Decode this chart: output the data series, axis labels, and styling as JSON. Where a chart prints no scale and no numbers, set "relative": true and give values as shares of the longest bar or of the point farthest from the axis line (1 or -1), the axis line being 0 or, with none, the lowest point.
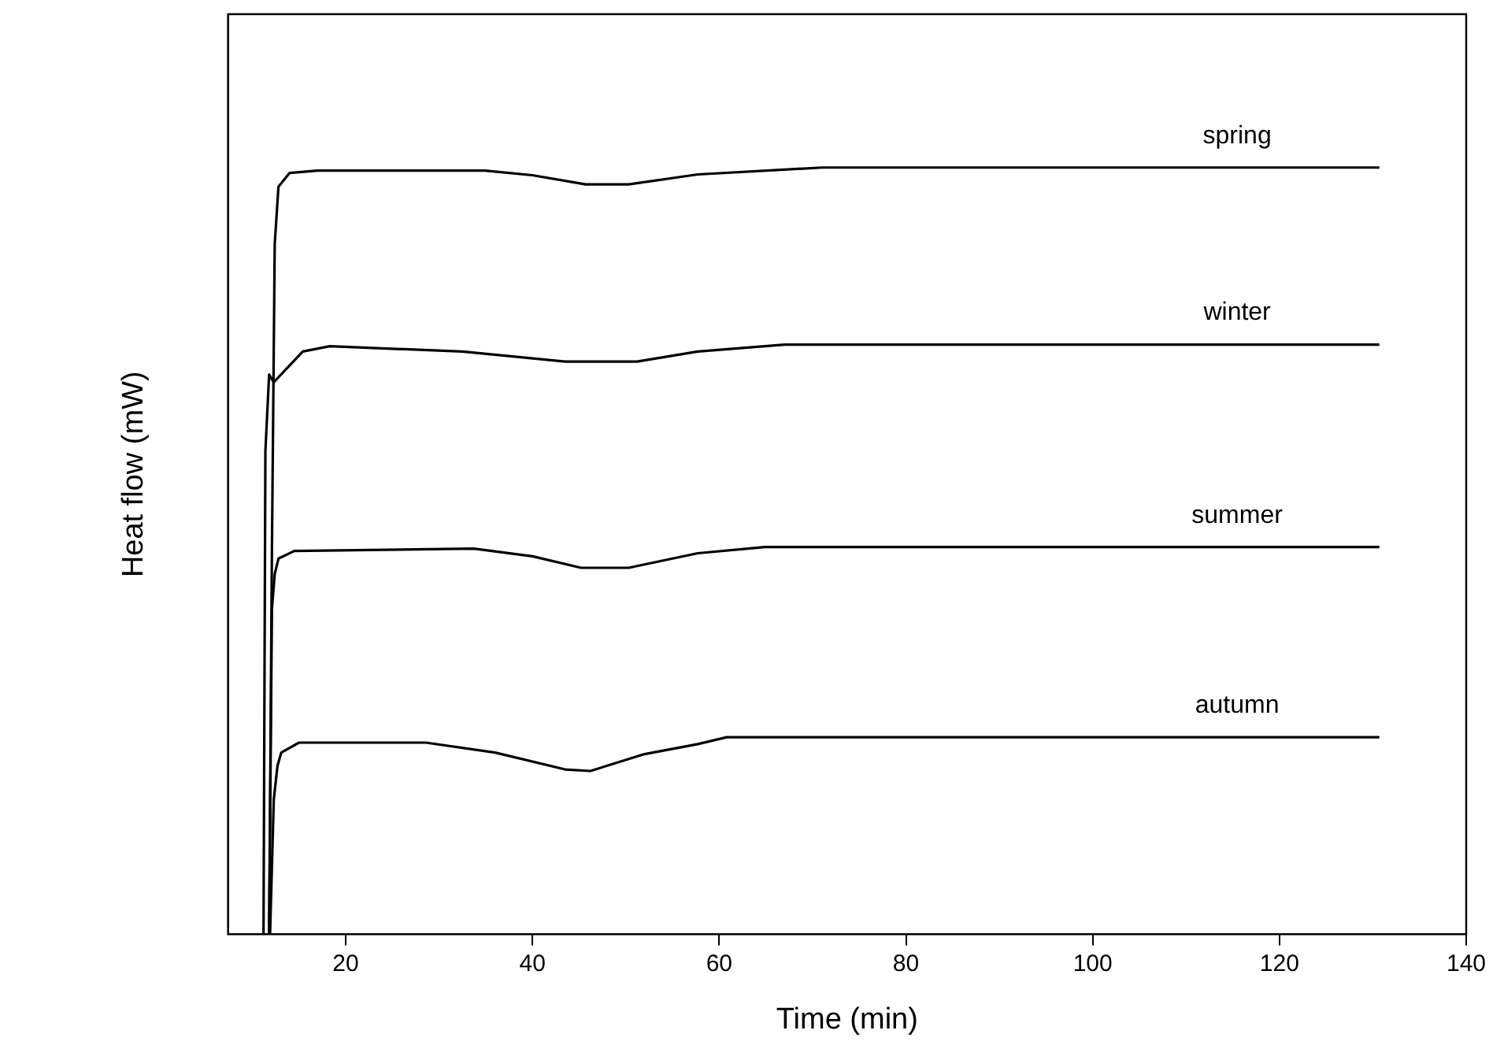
{
  "chart_data": {
    "type": "line",
    "xlabel": "Time (min)",
    "ylabel": "Heat flow (mW)",
    "relative": true,
    "xlim": [
      7.4,
      140
    ],
    "xticks": [
      20,
      40,
      60,
      80,
      100,
      120,
      140
    ],
    "grid": false,
    "legend": false,
    "marker": "none",
    "line_style": "solid",
    "series": [
      {
        "name": "spring",
        "color": "#000000",
        "x": [
          11.8,
          12.1,
          12.4,
          12.8,
          14.0,
          17.0,
          34.9,
          40.0,
          45.7,
          50.3,
          57.7,
          71.0,
          130.7
        ],
        "values": [
          0,
          0.5,
          0.9,
          0.975,
          0.993,
          0.996,
          0.996,
          0.99,
          0.978,
          0.978,
          0.991,
          1.0,
          1.0
        ]
      },
      {
        "name": "winter",
        "color": "#000000",
        "x": [
          11.2,
          11.4,
          11.8,
          12.3,
          15.4,
          18.3,
          32.5,
          43.5,
          51.2,
          57.7,
          67.0,
          130.7
        ],
        "values": [
          0,
          0.63,
          0.73,
          0.72,
          0.76,
          0.767,
          0.76,
          0.747,
          0.747,
          0.76,
          0.769,
          0.769
        ]
      },
      {
        "name": "summer",
        "color": "#000000",
        "x": [
          11.8,
          12.1,
          12.4,
          12.8,
          14.5,
          33.7,
          40.0,
          45.2,
          50.3,
          57.7,
          64.9,
          130.7
        ],
        "values": [
          0,
          0.424,
          0.47,
          0.49,
          0.5,
          0.503,
          0.493,
          0.478,
          0.478,
          0.497,
          0.505,
          0.505
        ]
      },
      {
        "name": "autumn",
        "color": "#000000",
        "x": [
          11.9,
          12.3,
          12.7,
          13.1,
          15.0,
          28.6,
          36.0,
          43.5,
          46.2,
          52.0,
          57.7,
          60.8,
          130.7
        ],
        "values": [
          0,
          0.176,
          0.22,
          0.237,
          0.25,
          0.25,
          0.237,
          0.215,
          0.213,
          0.235,
          0.248,
          0.257,
          0.257
        ]
      }
    ]
  }
}
